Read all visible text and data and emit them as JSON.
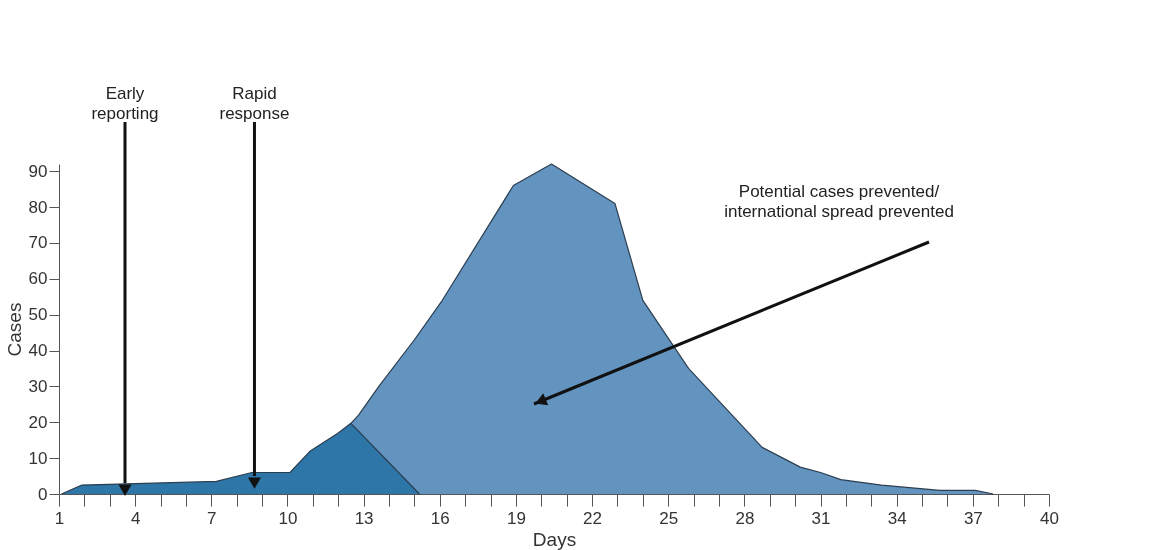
{
  "chart_data": {
    "type": "area",
    "xlabel": "Days",
    "ylabel": "Cases",
    "xlim": [
      1,
      40
    ],
    "ylim": [
      0,
      92
    ],
    "xticks": [
      1,
      {
        "value": 2,
        "label": null
      },
      {
        "value": 3,
        "label": null
      },
      4,
      {
        "value": 5,
        "label": null
      },
      {
        "value": 6,
        "label": null
      },
      7,
      {
        "value": 8,
        "label": null
      },
      {
        "value": 9,
        "label": null
      },
      10,
      {
        "value": 11,
        "label": null
      },
      {
        "value": 12,
        "label": null
      },
      13,
      {
        "value": 14,
        "label": null
      },
      {
        "value": 15,
        "label": null
      },
      16,
      {
        "value": 17,
        "label": null
      },
      {
        "value": 18,
        "label": null
      },
      19,
      {
        "value": 20,
        "label": null
      },
      {
        "value": 21,
        "label": null
      },
      22,
      {
        "value": 23,
        "label": null
      },
      {
        "value": 24,
        "label": null
      },
      25,
      {
        "value": 26,
        "label": null
      },
      {
        "value": 27,
        "label": null
      },
      28,
      {
        "value": 29,
        "label": null
      },
      {
        "value": 30,
        "label": null
      },
      31,
      {
        "value": 32,
        "label": null
      },
      {
        "value": 33,
        "label": null
      },
      34,
      {
        "value": 35,
        "label": null
      },
      {
        "value": 36,
        "label": null
      },
      37,
      {
        "value": 38,
        "label": null
      },
      {
        "value": 39,
        "label": null
      },
      40
    ],
    "yticks": [
      0,
      10,
      20,
      30,
      40,
      50,
      60,
      70,
      80,
      90
    ],
    "grid": false,
    "series": [
      {
        "color": "#6393bf",
        "x": [
          12.5,
          12.8,
          13.6,
          15,
          16.1,
          18.9,
          20.4,
          22.9,
          24,
          25.8,
          28.7,
          30.2,
          31,
          31.8,
          33.4,
          35.7,
          37.1,
          37.8
        ],
        "values": [
          19.7,
          22,
          30,
          43,
          54,
          86,
          92,
          81,
          54,
          35,
          13,
          7.5,
          6,
          4,
          2.5,
          1,
          1,
          0
        ]
      },
      {
        "color": "#2e75a8",
        "x": [
          1.1,
          1.9,
          7.2,
          8.6,
          10.1,
          10.9,
          12,
          12.5,
          15.2
        ],
        "values": [
          0,
          2.5,
          3.5,
          6,
          6,
          12,
          17,
          19.7,
          0
        ]
      }
    ],
    "annotations": [
      {
        "text": "Early\nreporting",
        "x": 3.6,
        "y": 3
      },
      {
        "text": "Rapid\nresponse",
        "x": 8.7,
        "y": 5
      },
      "Potential cases prevented/\ninternational spread prevented"
    ]
  }
}
